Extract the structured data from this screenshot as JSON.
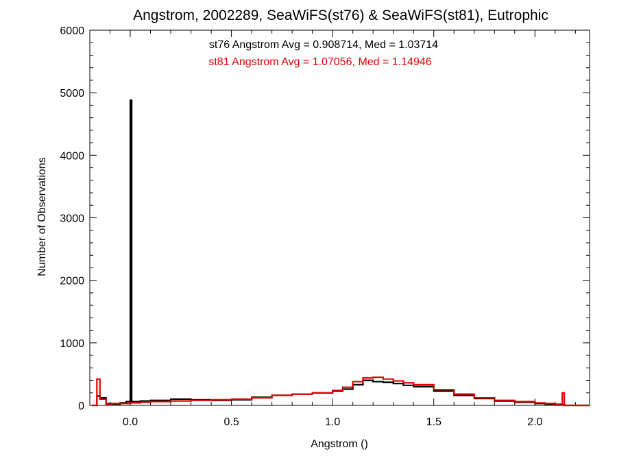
{
  "chart_data": {
    "type": "line",
    "title": "Angstrom, 2002289, SeaWiFS(st76) & SeaWiFS(st81), Eutrophic",
    "xlabel": "Angstrom ()",
    "ylabel": "Number of Observations",
    "xlim": [
      -0.2,
      2.27
    ],
    "ylim": [
      0,
      6000
    ],
    "x_ticks": [
      0.0,
      0.5,
      1.0,
      1.5,
      2.0
    ],
    "x_tick_labels": [
      "0.0",
      "0.5",
      "1.0",
      "1.5",
      "2.0"
    ],
    "y_ticks": [
      0,
      1000,
      2000,
      3000,
      4000,
      5000,
      6000
    ],
    "y_tick_labels": [
      "0",
      "1000",
      "2000",
      "3000",
      "4000",
      "5000",
      "6000"
    ],
    "step_style": "histogram",
    "annotations": [
      {
        "text": "st76 Angstrom Avg = 0.908714, Med = 1.03714",
        "color": "#000000"
      },
      {
        "text": "st81 Angstrom Avg = 1.07056, Med = 1.14946",
        "color": "#e00000"
      }
    ],
    "series": [
      {
        "color": "#000000",
        "x": [
          -0.19,
          -0.165,
          -0.15,
          -0.12,
          -0.09,
          -0.05,
          -0.02,
          -0.003,
          0.0,
          0.007,
          0.05,
          0.1,
          0.2,
          0.3,
          0.4,
          0.5,
          0.6,
          0.7,
          0.8,
          0.9,
          1.0,
          1.05,
          1.1,
          1.15,
          1.2,
          1.25,
          1.3,
          1.35,
          1.4,
          1.5,
          1.6,
          1.7,
          1.8,
          1.9,
          2.0,
          2.05,
          2.1,
          2.13,
          2.145,
          2.27
        ],
        "values": [
          0,
          150,
          120,
          30,
          20,
          40,
          60,
          60,
          4880,
          60,
          70,
          80,
          100,
          90,
          80,
          90,
          130,
          160,
          180,
          200,
          230,
          260,
          330,
          400,
          380,
          370,
          350,
          320,
          300,
          230,
          160,
          110,
          70,
          50,
          30,
          20,
          15,
          10,
          0,
          0
        ]
      },
      {
        "color": "#e00000",
        "x": [
          -0.19,
          -0.165,
          -0.15,
          -0.12,
          -0.09,
          -0.05,
          0.0,
          0.05,
          0.1,
          0.2,
          0.3,
          0.4,
          0.5,
          0.6,
          0.7,
          0.8,
          0.9,
          1.0,
          1.05,
          1.1,
          1.15,
          1.2,
          1.25,
          1.3,
          1.35,
          1.4,
          1.5,
          1.6,
          1.7,
          1.8,
          1.9,
          2.0,
          2.05,
          2.1,
          2.12,
          2.135,
          2.145,
          2.27
        ],
        "values": [
          0,
          420,
          100,
          20,
          30,
          30,
          40,
          50,
          60,
          70,
          80,
          90,
          100,
          120,
          160,
          180,
          200,
          240,
          290,
          380,
          440,
          450,
          420,
          390,
          360,
          330,
          250,
          180,
          120,
          80,
          60,
          40,
          30,
          20,
          20,
          200,
          0,
          0
        ]
      }
    ]
  }
}
